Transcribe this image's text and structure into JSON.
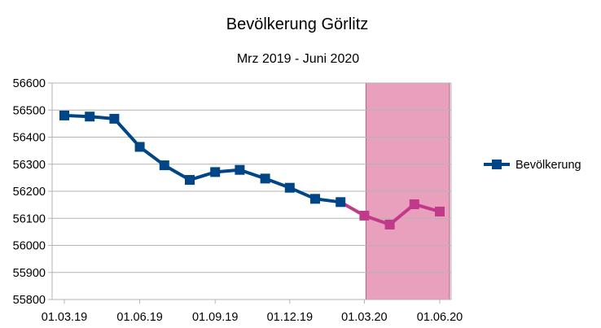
{
  "chart_data": {
    "type": "line",
    "title": "Bevölkerung Görlitz",
    "subtitle": "Mrz 2019 - Juni 2020",
    "xlabel": "",
    "ylabel": "",
    "ylim": [
      55800,
      56600
    ],
    "y_ticks": [
      "55800",
      "55900",
      "56000",
      "56100",
      "56200",
      "56300",
      "56400",
      "56500",
      "56600"
    ],
    "x_ticks": [
      "01.03.19",
      "01.06.19",
      "01.09.19",
      "01.12.19",
      "01.03.20",
      "01.06.20"
    ],
    "grid": true,
    "legend_position": "right",
    "series": [
      {
        "name": "Bevölkerung",
        "color": "#004586",
        "highlight_color": "#c0398a",
        "x": [
          "2019-03-01",
          "2019-04-01",
          "2019-05-01",
          "2019-06-01",
          "2019-07-01",
          "2019-08-01",
          "2019-09-01",
          "2019-10-01",
          "2019-11-01",
          "2019-12-01",
          "2020-01-01",
          "2020-02-01",
          "2020-03-01",
          "2020-04-01",
          "2020-05-01",
          "2020-06-01"
        ],
        "values": [
          56480,
          56476,
          56468,
          56364,
          56296,
          56242,
          56271,
          56279,
          56247,
          56213,
          56172,
          56160,
          56110,
          56077,
          56152,
          56125
        ]
      }
    ],
    "highlight_region": {
      "from": "2020-03-01",
      "to": "2020-06-01",
      "color": "#e8a0bc"
    }
  }
}
